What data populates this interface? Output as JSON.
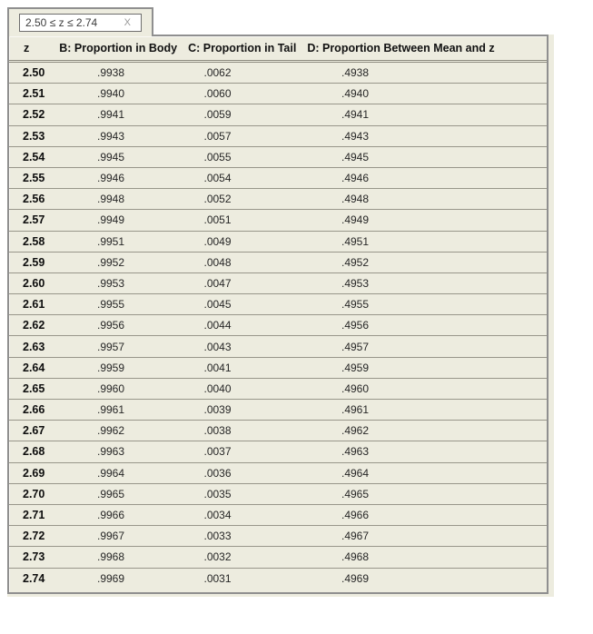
{
  "tab": {
    "range_text": "2.50 ≤ z ≤ 2.74",
    "close_label": "X"
  },
  "table": {
    "columns": [
      "z",
      "B: Proportion in Body",
      "C: Proportion in Tail",
      "D: Proportion Between Mean and z"
    ],
    "rows": [
      {
        "z": "2.50",
        "body": ".9938",
        "tail": ".0062",
        "between": ".4938"
      },
      {
        "z": "2.51",
        "body": ".9940",
        "tail": ".0060",
        "between": ".4940"
      },
      {
        "z": "2.52",
        "body": ".9941",
        "tail": ".0059",
        "between": ".4941"
      },
      {
        "z": "2.53",
        "body": ".9943",
        "tail": ".0057",
        "between": ".4943"
      },
      {
        "z": "2.54",
        "body": ".9945",
        "tail": ".0055",
        "between": ".4945"
      },
      {
        "z": "2.55",
        "body": ".9946",
        "tail": ".0054",
        "between": ".4946"
      },
      {
        "z": "2.56",
        "body": ".9948",
        "tail": ".0052",
        "between": ".4948"
      },
      {
        "z": "2.57",
        "body": ".9949",
        "tail": ".0051",
        "between": ".4949"
      },
      {
        "z": "2.58",
        "body": ".9951",
        "tail": ".0049",
        "between": ".4951"
      },
      {
        "z": "2.59",
        "body": ".9952",
        "tail": ".0048",
        "between": ".4952"
      },
      {
        "z": "2.60",
        "body": ".9953",
        "tail": ".0047",
        "between": ".4953"
      },
      {
        "z": "2.61",
        "body": ".9955",
        "tail": ".0045",
        "between": ".4955"
      },
      {
        "z": "2.62",
        "body": ".9956",
        "tail": ".0044",
        "between": ".4956"
      },
      {
        "z": "2.63",
        "body": ".9957",
        "tail": ".0043",
        "between": ".4957"
      },
      {
        "z": "2.64",
        "body": ".9959",
        "tail": ".0041",
        "between": ".4959"
      },
      {
        "z": "2.65",
        "body": ".9960",
        "tail": ".0040",
        "between": ".4960"
      },
      {
        "z": "2.66",
        "body": ".9961",
        "tail": ".0039",
        "between": ".4961"
      },
      {
        "z": "2.67",
        "body": ".9962",
        "tail": ".0038",
        "between": ".4962"
      },
      {
        "z": "2.68",
        "body": ".9963",
        "tail": ".0037",
        "between": ".4963"
      },
      {
        "z": "2.69",
        "body": ".9964",
        "tail": ".0036",
        "between": ".4964"
      },
      {
        "z": "2.70",
        "body": ".9965",
        "tail": ".0035",
        "between": ".4965"
      },
      {
        "z": "2.71",
        "body": ".9966",
        "tail": ".0034",
        "between": ".4966"
      },
      {
        "z": "2.72",
        "body": ".9967",
        "tail": ".0033",
        "between": ".4967"
      },
      {
        "z": "2.73",
        "body": ".9968",
        "tail": ".0032",
        "between": ".4968"
      },
      {
        "z": "2.74",
        "body": ".9969",
        "tail": ".0031",
        "between": ".4969"
      }
    ]
  },
  "colors": {
    "panel_background": "#edecdf",
    "border_gray": "#8f8f8f",
    "row_line": "#98968a",
    "page_background": "#ffffff"
  }
}
